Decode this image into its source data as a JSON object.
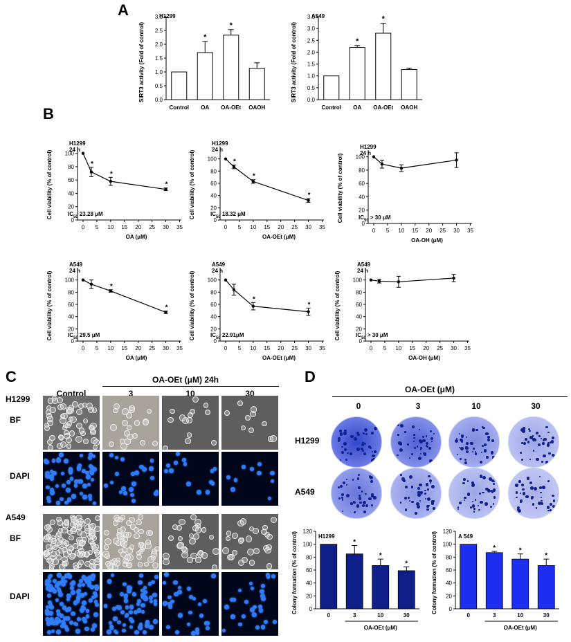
{
  "panels": {
    "A": "A",
    "B": "B",
    "C": "C",
    "D": "D"
  },
  "panel_a": {
    "ylabel": "SIRT3 activity (Fold of control)",
    "categories": [
      "Control",
      "OA",
      "OA-OEt",
      "OAOH"
    ],
    "charts": [
      {
        "cell": "H1299",
        "yticks": [
          "0.0",
          "0.5",
          "1.0",
          "1.5",
          "2.0",
          "2.5",
          "3.0"
        ],
        "ymax": 3.0,
        "values": [
          1.0,
          1.7,
          2.33,
          1.13
        ],
        "errors": [
          0,
          0.4,
          0.2,
          0.2
        ],
        "sig": [
          "",
          "*",
          "*",
          ""
        ]
      },
      {
        "cell": "A549",
        "yticks": [
          "0.0",
          "0.5",
          "1.0",
          "1.5",
          "2.0",
          "2.5",
          "3.0",
          "3.5"
        ],
        "ymax": 3.5,
        "values": [
          1.0,
          2.2,
          2.8,
          1.27
        ],
        "errors": [
          0,
          0.08,
          0.42,
          0.06
        ],
        "sig": [
          "",
          "*",
          "*",
          ""
        ]
      }
    ]
  },
  "panel_b": {
    "ylabel": "Cell viability (% of control)",
    "yticks": [
      "0",
      "20",
      "40",
      "60",
      "80",
      "100"
    ],
    "xticks": [
      "0",
      "5",
      "10",
      "15",
      "20",
      "25",
      "30",
      "35"
    ],
    "time": "24 h",
    "charts": [
      {
        "cell": "H1299",
        "xlabel": "OA (μM)",
        "ic_pre": "IC",
        "ic_sub": "50",
        "ic_post": " 23.28 μM",
        "x": [
          0,
          3,
          10,
          30
        ],
        "y": [
          100,
          72,
          58,
          46
        ],
        "err": [
          0,
          7,
          6,
          2
        ],
        "sig": [
          "",
          "*",
          "*",
          "*"
        ],
        "yaxis_top": 110
      },
      {
        "cell": "H1299",
        "xlabel": "OA-OEt (μM)",
        "ic_pre": "IC",
        "ic_sub": "50",
        "ic_post": " 18.32 μM",
        "x": [
          0,
          3,
          10,
          30
        ],
        "y": [
          100,
          87,
          63,
          32
        ],
        "err": [
          0,
          3,
          3,
          3
        ],
        "sig": [
          "",
          "*",
          "*",
          "*"
        ],
        "yaxis_top": 120
      },
      {
        "cell": "H1299",
        "xlabel": "OA-OH (μM)",
        "ic_pre": "IC",
        "ic_sub": "50",
        "ic_post": " > 30 μM",
        "x": [
          0,
          3,
          10,
          30
        ],
        "y": [
          100,
          89,
          83,
          95
        ],
        "err": [
          0,
          6,
          5,
          11
        ],
        "sig": [
          "",
          "",
          "",
          ""
        ],
        "yaxis_top": 110
      },
      {
        "cell": "A549",
        "xlabel": "OA (μM)",
        "ic_pre": "IC",
        "ic_sub": "50",
        "ic_post": " 29.5 μM",
        "x": [
          0,
          3,
          10,
          30
        ],
        "y": [
          100,
          93,
          82,
          47
        ],
        "err": [
          0,
          7,
          2,
          2
        ],
        "sig": [
          "",
          "",
          "*",
          "*"
        ],
        "yaxis_top": 120
      },
      {
        "cell": "A549",
        "xlabel": "OA-OEt (μM)",
        "ic_pre": "IC",
        "ic_sub": "50",
        "ic_post": " 22.91μM",
        "x": [
          0,
          3,
          10,
          30
        ],
        "y": [
          100,
          84,
          57,
          48
        ],
        "err": [
          0,
          9,
          6,
          6
        ],
        "sig": [
          "",
          "",
          "*",
          "*"
        ],
        "yaxis_top": 120
      },
      {
        "cell": "A549",
        "xlabel": "OA-OH (μM)",
        "ic_pre": "IC",
        "ic_sub": "50",
        "ic_post": " > 30 μM",
        "x": [
          0,
          3,
          10,
          30
        ],
        "y": [
          100,
          98,
          97,
          103
        ],
        "err": [
          0,
          3,
          9,
          6
        ],
        "sig": [
          "",
          "",
          "",
          ""
        ],
        "yaxis_top": 120
      }
    ]
  },
  "panel_c": {
    "header": "OA-OEt  (μM) 24h",
    "columns": [
      "Control",
      "3",
      "10",
      "30"
    ],
    "rows": [
      {
        "cell": "H1299",
        "label": "BF"
      },
      {
        "cell": "",
        "label": "DAPI"
      },
      {
        "cell": "A549",
        "label": "BF"
      },
      {
        "cell": "",
        "label": "DAPI"
      }
    ]
  },
  "panel_d": {
    "header": "OA-OEt (μM)",
    "columns": [
      "0",
      "3",
      "10",
      "30"
    ],
    "rows": [
      "H1299",
      "A549"
    ],
    "ylabel": "Colony formation (% of control)",
    "xlabel": "OA-OEt (μM)",
    "categories": [
      "0",
      "3",
      "10",
      "30"
    ],
    "yticks": [
      "0",
      "20",
      "40",
      "60",
      "80",
      "100",
      "120"
    ],
    "charts": [
      {
        "cell": "H1299",
        "values": [
          100,
          85,
          67,
          59
        ],
        "errors": [
          0,
          13,
          10,
          6
        ],
        "sig": [
          "",
          "*",
          "*",
          "*"
        ],
        "color": "#0f1f8a"
      },
      {
        "cell": "A 549",
        "values": [
          100,
          87,
          77,
          67
        ],
        "errors": [
          0,
          2,
          8,
          10
        ],
        "sig": [
          "",
          "*",
          "*",
          "*"
        ],
        "color": "#1c2ff0"
      }
    ]
  },
  "chart_data": [
    {
      "type": "bar",
      "title": "H1299",
      "categories": [
        "Control",
        "OA",
        "OA-OEt",
        "OAOH"
      ],
      "values": [
        1.0,
        1.7,
        2.33,
        1.13
      ],
      "ylabel": "SIRT3 activity (Fold of control)",
      "ylim": [
        0,
        3.0
      ]
    },
    {
      "type": "bar",
      "title": "A549",
      "categories": [
        "Control",
        "OA",
        "OA-OEt",
        "OAOH"
      ],
      "values": [
        1.0,
        2.2,
        2.8,
        1.27
      ],
      "ylabel": "SIRT3 activity (Fold of control)",
      "ylim": [
        0,
        3.5
      ]
    },
    {
      "type": "line",
      "title": "H1299",
      "x": [
        0,
        3,
        10,
        30
      ],
      "y": [
        100,
        72,
        58,
        46
      ],
      "xlabel": "OA (μM)",
      "ylabel": "Cell viability (% of control)"
    },
    {
      "type": "line",
      "title": "H1299",
      "x": [
        0,
        3,
        10,
        30
      ],
      "y": [
        100,
        87,
        63,
        32
      ],
      "xlabel": "OA-OEt (μM)",
      "ylabel": "Cell viability (% of control)"
    },
    {
      "type": "line",
      "title": "H1299",
      "x": [
        0,
        3,
        10,
        30
      ],
      "y": [
        100,
        89,
        83,
        95
      ],
      "xlabel": "OA-OH (μM)",
      "ylabel": "Cell viability (% of control)"
    },
    {
      "type": "line",
      "title": "A549",
      "x": [
        0,
        3,
        10,
        30
      ],
      "y": [
        100,
        93,
        82,
        47
      ],
      "xlabel": "OA (μM)",
      "ylabel": "Cell viability (% of control)"
    },
    {
      "type": "line",
      "title": "A549",
      "x": [
        0,
        3,
        10,
        30
      ],
      "y": [
        100,
        84,
        57,
        48
      ],
      "xlabel": "OA-OEt (μM)",
      "ylabel": "Cell viability (% of control)"
    },
    {
      "type": "line",
      "title": "A549",
      "x": [
        0,
        3,
        10,
        30
      ],
      "y": [
        100,
        98,
        97,
        103
      ],
      "xlabel": "OA-OH (μM)",
      "ylabel": "Cell viability (% of control)"
    },
    {
      "type": "bar",
      "title": "H1299",
      "categories": [
        "0",
        "3",
        "10",
        "30"
      ],
      "values": [
        100,
        85,
        67,
        59
      ],
      "xlabel": "OA-OEt (μM)",
      "ylabel": "Colony formation (% of control)",
      "ylim": [
        0,
        120
      ]
    },
    {
      "type": "bar",
      "title": "A 549",
      "categories": [
        "0",
        "3",
        "10",
        "30"
      ],
      "values": [
        100,
        87,
        77,
        67
      ],
      "xlabel": "OA-OEt (μM)",
      "ylabel": "Colony formation (% of control)",
      "ylim": [
        0,
        120
      ]
    }
  ]
}
